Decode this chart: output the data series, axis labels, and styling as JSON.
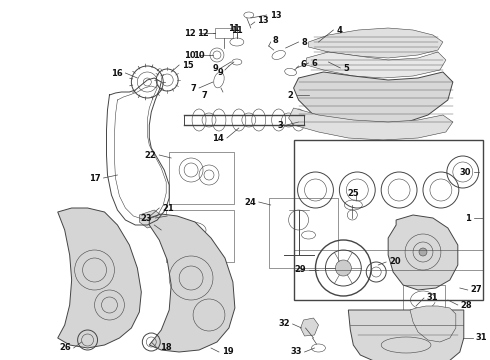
{
  "bg_color": "#ffffff",
  "fig_width": 4.9,
  "fig_height": 3.6,
  "dpi": 100,
  "line_color": "#444444",
  "label_color": "#111111",
  "label_fontsize": 6.0
}
